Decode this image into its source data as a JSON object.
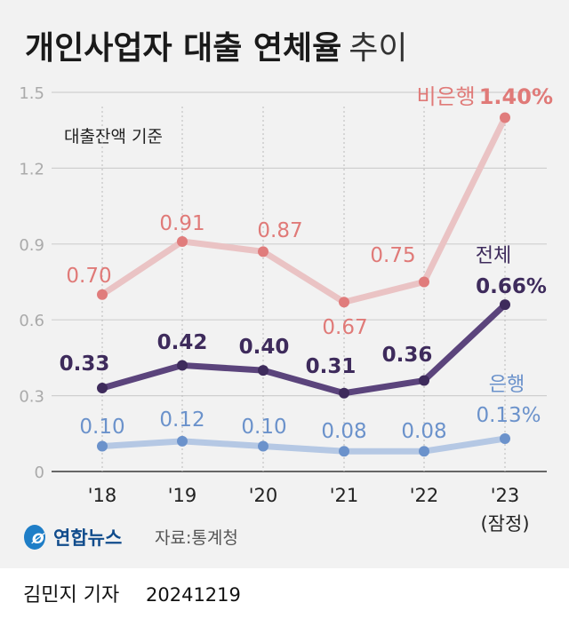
{
  "title": {
    "bold": "개인사업자 대출 연체율",
    "light": "추이"
  },
  "subtitle": "대출잔액 기준",
  "source": "자료:통계청",
  "logo_text": "연합뉴스",
  "byline": {
    "author": "김민지 기자",
    "date": "20241219"
  },
  "colors": {
    "background": "#f2f2f2",
    "nonbank_line": "#eac3c4",
    "nonbank_point": "#e07c7c",
    "total_line": "#5b447c",
    "total_point": "#3e2b5c",
    "bank_line": "#b5c8e4",
    "bank_point": "#6b92cb"
  },
  "chart_data": {
    "type": "line",
    "categories": [
      "'18",
      "'19",
      "'20",
      "'21",
      "'22",
      "'23"
    ],
    "category_note": "(잠정)",
    "yticks": [
      "0",
      "0.3",
      "0.6",
      "0.9",
      "1.2",
      "1.5"
    ],
    "ylim": [
      0,
      1.5
    ],
    "grid": true,
    "series": [
      {
        "name": "비은행",
        "values": [
          0.7,
          0.91,
          0.87,
          0.67,
          0.75,
          1.4
        ],
        "labels": [
          "0.70",
          "0.91",
          "0.87",
          "0.67",
          "0.75",
          "1.40%"
        ]
      },
      {
        "name": "전체",
        "values": [
          0.33,
          0.42,
          0.4,
          0.31,
          0.36,
          0.66
        ],
        "labels": [
          "0.33",
          "0.42",
          "0.40",
          "0.31",
          "0.36",
          "0.66%"
        ]
      },
      {
        "name": "은행",
        "values": [
          0.1,
          0.12,
          0.1,
          0.08,
          0.08,
          0.13
        ],
        "labels": [
          "0.10",
          "0.12",
          "0.10",
          "0.08",
          "0.08",
          "0.13%"
        ]
      }
    ]
  }
}
